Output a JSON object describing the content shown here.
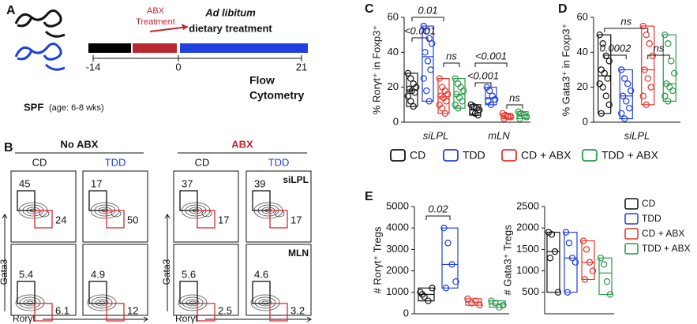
{
  "panel_labels": [
    "A",
    "B",
    "C",
    "D",
    "E"
  ],
  "timeline": {
    "abx_label": [
      "ABX",
      "Treatment"
    ],
    "diet_label": [
      "Ad libitum",
      "dietary treatment"
    ],
    "days": [
      -14,
      0,
      21
    ],
    "readout": [
      "Flow",
      "Cytometry"
    ],
    "mouse_label": "SPF",
    "mouse_note": "(age: 6-8 wks)"
  },
  "flow": {
    "groups": [
      {
        "title": "No ABX",
        "columns": [
          "CD",
          "TDD"
        ]
      },
      {
        "title": "ABX",
        "columns": [
          "CD",
          "TDD"
        ]
      }
    ],
    "rows": [
      "siLPL",
      "MLN"
    ],
    "x_label": "Rorγt",
    "y_label": "Gata3",
    "gates": [
      [
        [
          [
            45,
            24
          ],
          [
            17,
            50
          ]
        ],
        [
          [
            37,
            17
          ],
          [
            39,
            17
          ]
        ]
      ],
      [
        [
          [
            5.4,
            6.1
          ],
          [
            4.9,
            12
          ]
        ],
        [
          [
            5.6,
            2.5
          ],
          [
            4.6,
            3.2
          ]
        ]
      ]
    ]
  },
  "chart_data": [
    {
      "type": "dotbox",
      "y_label": "% Rorγt⁺ in Foxp3⁺",
      "categories": [
        "siLPL",
        "mLN"
      ],
      "ylim": [
        0,
        60
      ],
      "yticks": [
        0,
        20,
        40,
        60
      ],
      "series": [
        {
          "name": "CD",
          "color": "#111111",
          "values": [
            [
              28,
              25,
              22,
              20,
              19,
              18,
              17,
              15,
              12,
              9
            ],
            [
              10,
              9,
              8,
              7,
              6,
              5,
              4
            ]
          ]
        },
        {
          "name": "TDD",
          "color": "#1f3fdf",
          "values": [
            [
              55,
              52,
              48,
              45,
              40,
              35,
              30,
              25,
              18,
              12
            ],
            [
              20,
              18,
              15,
              13,
              12,
              10
            ]
          ]
        },
        {
          "name": "CD + ABX",
          "color": "#e8322a",
          "values": [
            [
              25,
              20,
              18,
              16,
              15,
              14,
              12,
              10,
              8,
              5
            ],
            [
              5,
              4,
              3,
              3,
              2
            ]
          ]
        },
        {
          "name": "TDD + ABX",
          "color": "#2a9a48",
          "values": [
            [
              25,
              22,
              20,
              18,
              16,
              14,
              12,
              10,
              8
            ],
            [
              6,
              5,
              4,
              3,
              2
            ]
          ]
        }
      ],
      "annotations": [
        "0.01",
        "<0.001",
        "ns",
        "<0.001",
        "<0.001",
        "ns"
      ]
    },
    {
      "type": "dotbox",
      "y_label": "% Gata3⁺ in Foxp3⁺",
      "categories": [
        "siLPL"
      ],
      "ylim": [
        0,
        60
      ],
      "yticks": [
        0,
        20,
        40,
        60
      ],
      "series": [
        {
          "color": "#111111",
          "values": [
            [
              50,
              45,
              38,
              35,
              30,
              28,
              25,
              22,
              20,
              15,
              10,
              5
            ]
          ]
        },
        {
          "color": "#1f3fdf",
          "values": [
            [
              30,
              25,
              22,
              18,
              15,
              12,
              8,
              5,
              2
            ]
          ]
        },
        {
          "color": "#e8322a",
          "values": [
            [
              55,
              50,
              45,
              38,
              30,
              25,
              20,
              15,
              10
            ]
          ]
        },
        {
          "color": "#2a9a48",
          "values": [
            [
              50,
              45,
              35,
              28,
              22,
              20,
              18,
              15,
              12
            ]
          ]
        }
      ],
      "annotations": [
        "ns",
        "0.0002",
        "ns"
      ]
    },
    {
      "type": "dotbox",
      "y_label": "# Rorγt⁺ Tregs",
      "ylim": [
        0,
        5000
      ],
      "yticks": [
        0,
        1000,
        2000,
        3000,
        4000,
        5000
      ],
      "series": [
        {
          "color": "#111111",
          "values": [
            1000,
            800,
            600,
            1200,
            900
          ]
        },
        {
          "color": "#1f3fdf",
          "values": [
            4000,
            3300,
            2300,
            1500,
            1200
          ]
        },
        {
          "color": "#e8322a",
          "values": [
            700,
            500,
            600,
            400
          ]
        },
        {
          "color": "#2a9a48",
          "values": [
            600,
            500,
            300,
            400
          ]
        }
      ],
      "annotations": [
        "0.02"
      ]
    },
    {
      "type": "dotbox",
      "y_label": "# Gata3⁺ Tregs",
      "ylim": [
        0,
        2500
      ],
      "yticks": [
        500,
        1000,
        1500,
        2000,
        2500
      ],
      "series": [
        {
          "name": "CD",
          "color": "#111111",
          "values": [
            1900,
            1850,
            1450,
            500,
            1300
          ]
        },
        {
          "name": "TDD",
          "color": "#1f3fdf",
          "values": [
            1900,
            1650,
            1300,
            1200,
            500
          ]
        },
        {
          "name": "CD + ABX",
          "color": "#e8322a",
          "values": [
            1700,
            1500,
            1200,
            1000,
            800
          ]
        },
        {
          "name": "TDD + ABX",
          "color": "#2a9a48",
          "values": [
            1300,
            1150,
            750,
            450
          ]
        }
      ]
    }
  ]
}
